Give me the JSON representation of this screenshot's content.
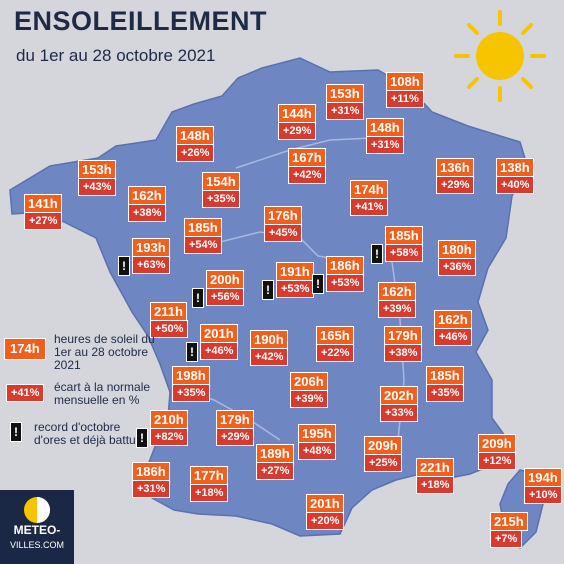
{
  "title": "ENSOLEILLEMENT",
  "subtitle": "du 1er au 28 octobre 2021",
  "colors": {
    "background": "#d4d6dc",
    "map_fill": "#6e86c2",
    "hours_box": "#f0601c",
    "percent_box": "#d93a2e",
    "record_box": "#111111",
    "sun": "#f6c500"
  },
  "record_mark": "!",
  "legend": {
    "hours_sample": "174h",
    "hours_text": "heures de soleil du 1er au 28 octobre 2021",
    "pct_sample": "+41%",
    "pct_text": "écart à la normale mensuelle en %",
    "record_text": "record d'octobre d'ores et déjà battu"
  },
  "logo": {
    "line1": "METEO-",
    "line2": "VILLES.COM"
  },
  "stations": [
    {
      "hours": "108h",
      "pct": "+11%",
      "record": false
    },
    {
      "hours": "153h",
      "pct": "+31%",
      "record": false
    },
    {
      "hours": "144h",
      "pct": "+29%",
      "record": false
    },
    {
      "hours": "148h",
      "pct": "+31%",
      "record": false
    },
    {
      "hours": "148h",
      "pct": "+26%",
      "record": false
    },
    {
      "hours": "167h",
      "pct": "+42%",
      "record": false
    },
    {
      "hours": "153h",
      "pct": "+43%",
      "record": false
    },
    {
      "hours": "136h",
      "pct": "+29%",
      "record": false
    },
    {
      "hours": "138h",
      "pct": "+40%",
      "record": false
    },
    {
      "hours": "162h",
      "pct": "+38%",
      "record": false
    },
    {
      "hours": "154h",
      "pct": "+35%",
      "record": false
    },
    {
      "hours": "174h",
      "pct": "+41%",
      "record": false
    },
    {
      "hours": "141h",
      "pct": "+27%",
      "record": false
    },
    {
      "hours": "176h",
      "pct": "+45%",
      "record": false
    },
    {
      "hours": "185h",
      "pct": "+54%",
      "record": false
    },
    {
      "hours": "185h",
      "pct": "+58%",
      "record": true
    },
    {
      "hours": "193h",
      "pct": "+63%",
      "record": true
    },
    {
      "hours": "180h",
      "pct": "+36%",
      "record": false
    },
    {
      "hours": "191h",
      "pct": "+53%",
      "record": true
    },
    {
      "hours": "186h",
      "pct": "+53%",
      "record": true
    },
    {
      "hours": "200h",
      "pct": "+56%",
      "record": true
    },
    {
      "hours": "162h",
      "pct": "+39%",
      "record": false
    },
    {
      "hours": "211h",
      "pct": "+50%",
      "record": false
    },
    {
      "hours": "201h",
      "pct": "+46%",
      "record": true
    },
    {
      "hours": "162h",
      "pct": "+46%",
      "record": false
    },
    {
      "hours": "190h",
      "pct": "+42%",
      "record": false
    },
    {
      "hours": "165h",
      "pct": "+22%",
      "record": false
    },
    {
      "hours": "179h",
      "pct": "+38%",
      "record": false
    },
    {
      "hours": "198h",
      "pct": "+35%",
      "record": false
    },
    {
      "hours": "206h",
      "pct": "+39%",
      "record": false
    },
    {
      "hours": "185h",
      "pct": "+35%",
      "record": false
    },
    {
      "hours": "202h",
      "pct": "+33%",
      "record": false
    },
    {
      "hours": "210h",
      "pct": "+82%",
      "record": true
    },
    {
      "hours": "179h",
      "pct": "+29%",
      "record": false
    },
    {
      "hours": "195h",
      "pct": "+48%",
      "record": false
    },
    {
      "hours": "189h",
      "pct": "+27%",
      "record": false
    },
    {
      "hours": "209h",
      "pct": "+25%",
      "record": false
    },
    {
      "hours": "209h",
      "pct": "+12%",
      "record": false
    },
    {
      "hours": "186h",
      "pct": "+31%",
      "record": false
    },
    {
      "hours": "177h",
      "pct": "+18%",
      "record": false
    },
    {
      "hours": "221h",
      "pct": "+18%",
      "record": false
    },
    {
      "hours": "194h",
      "pct": "+10%",
      "record": false
    },
    {
      "hours": "201h",
      "pct": "+20%",
      "record": false
    },
    {
      "hours": "215h",
      "pct": "+7%",
      "record": false
    }
  ]
}
